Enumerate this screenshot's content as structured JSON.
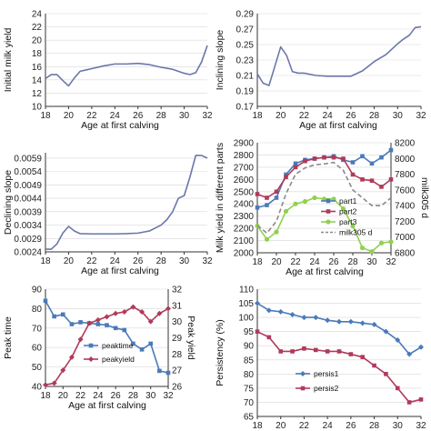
{
  "chart_data": [
    {
      "type": "line",
      "xlabel": "Age at first calving",
      "ylabel": "Initial milk yield",
      "xlim": [
        18,
        32
      ],
      "ylim": [
        10,
        24
      ],
      "xticks": [
        "18",
        "20",
        "22",
        "24",
        "26",
        "28",
        "30",
        "32"
      ],
      "yticks": [
        "10",
        "12",
        "14",
        "16",
        "18",
        "20",
        "22",
        "24"
      ],
      "y2label": "",
      "y2ticks": [],
      "legend": [],
      "series": [
        {
          "color": "#6a77aa",
          "marker": "none",
          "dash": "",
          "x": [
            18,
            18.5,
            19,
            19.5,
            20,
            20.5,
            21,
            21.5,
            22,
            23,
            24,
            25,
            26,
            27,
            28,
            29,
            30,
            30.5,
            31,
            31.5,
            32
          ],
          "y": [
            14.2,
            14.8,
            14.8,
            13.9,
            13.1,
            14.3,
            15.3,
            15.5,
            15.7,
            16.1,
            16.4,
            16.4,
            16.5,
            16.3,
            15.9,
            15.6,
            15.0,
            14.8,
            15.1,
            16.7,
            19.2
          ]
        }
      ]
    },
    {
      "type": "line",
      "xlabel": "Age at first calving",
      "ylabel": "Inclining slope",
      "xlim": [
        18,
        32
      ],
      "ylim": [
        0.17,
        0.29
      ],
      "xticks": [
        "18",
        "20",
        "22",
        "24",
        "26",
        "28",
        "30",
        "32"
      ],
      "yticks": [
        "0.17",
        "0.19",
        "0.21",
        "0.23",
        "0.25",
        "0.27",
        "0.29"
      ],
      "y2label": "",
      "y2ticks": [],
      "legend": [],
      "series": [
        {
          "color": "#6a77aa",
          "marker": "none",
          "dash": "",
          "x": [
            18,
            18.5,
            19,
            19.5,
            20,
            20.5,
            21,
            21.5,
            22,
            23,
            24,
            25,
            26,
            27,
            28,
            29,
            30,
            30.5,
            31,
            31.5,
            32
          ],
          "y": [
            0.212,
            0.2,
            0.197,
            0.222,
            0.247,
            0.236,
            0.215,
            0.213,
            0.213,
            0.21,
            0.209,
            0.209,
            0.209,
            0.216,
            0.228,
            0.237,
            0.251,
            0.257,
            0.262,
            0.272,
            0.273
          ]
        }
      ]
    },
    {
      "type": "line",
      "xlabel": "Age at first calving",
      "ylabel": "Declining slope",
      "xlim": [
        18,
        32
      ],
      "ylim": [
        0.0024,
        0.0061
      ],
      "xticks": [
        "18",
        "20",
        "22",
        "24",
        "26",
        "28",
        "30",
        "32"
      ],
      "yticks": [
        "0.0024",
        "0.0029",
        "0.0034",
        "0.0039",
        "0.0044",
        "0.0049",
        "0.0054",
        "0.0059"
      ],
      "y2label": "",
      "y2ticks": [],
      "legend": [],
      "series": [
        {
          "color": "#6a77aa",
          "marker": "none",
          "dash": "",
          "x": [
            18,
            18.5,
            19,
            19.5,
            20,
            20.5,
            21,
            22,
            23,
            24,
            25,
            26,
            27,
            28,
            28.5,
            29,
            29.5,
            30,
            30.5,
            31,
            31.5,
            32
          ],
          "y": [
            0.0025,
            0.0025,
            0.0027,
            0.0031,
            0.00335,
            0.00318,
            0.00308,
            0.00307,
            0.00307,
            0.00307,
            0.00308,
            0.0031,
            0.00318,
            0.0034,
            0.0036,
            0.0039,
            0.0044,
            0.0045,
            0.0052,
            0.006,
            0.006,
            0.0059
          ]
        }
      ]
    },
    {
      "type": "line",
      "xlabel": "Age at first calving",
      "ylabel": "Milk yield in different parts",
      "xlim": [
        18,
        32
      ],
      "ylim": [
        2000,
        2900
      ],
      "xticks": [
        "18",
        "20",
        "22",
        "24",
        "26",
        "28",
        "30",
        "32"
      ],
      "yticks": [
        "2000",
        "2100",
        "2200",
        "2300",
        "2400",
        "2500",
        "2600",
        "2700",
        "2800",
        "2900"
      ],
      "y2label": "milk305 d",
      "y2lim": [
        6800,
        8200
      ],
      "y2ticks": [
        "6800",
        "7000",
        "7200",
        "7400",
        "7600",
        "7800",
        "8000",
        "8200"
      ],
      "legend": [
        "part1",
        "part2",
        "part3",
        "milk305 d"
      ],
      "series": [
        {
          "name": "part1",
          "color": "#4a7ab8",
          "marker": "square",
          "dash": "",
          "x": [
            18,
            19,
            20,
            21,
            22,
            23,
            24,
            25,
            26,
            27,
            28,
            29,
            30,
            31,
            32
          ],
          "y": [
            2370,
            2390,
            2450,
            2640,
            2730,
            2760,
            2770,
            2780,
            2790,
            2760,
            2740,
            2790,
            2730,
            2780,
            2840
          ]
        },
        {
          "name": "part2",
          "color": "#b03a5a",
          "marker": "square",
          "dash": "",
          "x": [
            18,
            19,
            20,
            21,
            22,
            23,
            24,
            25,
            26,
            27,
            28,
            29,
            30,
            31,
            32
          ],
          "y": [
            2480,
            2450,
            2500,
            2620,
            2700,
            2750,
            2770,
            2780,
            2780,
            2770,
            2640,
            2600,
            2590,
            2540,
            2600
          ]
        },
        {
          "name": "part3",
          "color": "#8fd14f",
          "marker": "circle",
          "dash": "",
          "x": [
            18,
            19,
            20,
            21,
            22,
            23,
            24,
            25,
            26,
            27,
            28,
            29,
            30,
            31,
            32
          ],
          "y": [
            2220,
            2110,
            2170,
            2340,
            2400,
            2420,
            2450,
            2440,
            2440,
            2360,
            2220,
            2040,
            2010,
            2080,
            2090
          ]
        },
        {
          "name": "milk305 d",
          "color": "#8a8a8a",
          "marker": "none",
          "dash": "5,3",
          "axis": "y2",
          "x": [
            18,
            19,
            20,
            21,
            22,
            23,
            24,
            25,
            26,
            27,
            28,
            29,
            30,
            31,
            32
          ],
          "y": [
            7150,
            7050,
            7200,
            7550,
            7800,
            7880,
            7920,
            7930,
            7950,
            7850,
            7600,
            7500,
            7400,
            7400,
            7500
          ]
        }
      ]
    },
    {
      "type": "line",
      "xlabel": "Age at first calving",
      "ylabel": "Peak time",
      "xlim": [
        18,
        32
      ],
      "ylim": [
        40,
        90
      ],
      "xticks": [
        "18",
        "20",
        "22",
        "24",
        "26",
        "28",
        "30",
        "32"
      ],
      "yticks": [
        "40",
        "50",
        "60",
        "70",
        "80",
        "90"
      ],
      "y2label": "Peak yield",
      "y2lim": [
        26,
        32
      ],
      "y2ticks": [
        "26",
        "27",
        "28",
        "29",
        "30",
        "31",
        "32"
      ],
      "legend": [
        "peaktime",
        "peakyield"
      ],
      "series": [
        {
          "name": "peaktime",
          "color": "#4a7ab8",
          "marker": "square",
          "dash": "",
          "x": [
            18,
            19,
            20,
            21,
            22,
            23,
            24,
            25,
            26,
            27,
            28,
            29,
            30,
            31,
            32
          ],
          "y": [
            84,
            76,
            77,
            72,
            73,
            72.5,
            72,
            71.5,
            70,
            69,
            62,
            59,
            62,
            48,
            47
          ]
        },
        {
          "name": "peakyield",
          "color": "#b03a5a",
          "marker": "diamond",
          "dash": "",
          "x": [
            18,
            19,
            20,
            21,
            22,
            23,
            24,
            25,
            26,
            27,
            28,
            29,
            30,
            31,
            32
          ],
          "y": [
            26.1,
            26.2,
            27.0,
            27.8,
            28.9,
            29.9,
            30.1,
            30.3,
            30.5,
            30.6,
            30.9,
            30.6,
            30.0,
            30.5,
            30.8
          ],
          "axis": "y2"
        }
      ]
    },
    {
      "type": "line",
      "xlabel": "Age at first calving",
      "ylabel": "Persistency (%)",
      "xlim": [
        18,
        32
      ],
      "ylim": [
        65,
        110
      ],
      "xticks": [
        "18",
        "20",
        "22",
        "24",
        "26",
        "28",
        "30",
        "32"
      ],
      "yticks": [
        "65",
        "70",
        "75",
        "80",
        "85",
        "90",
        "95",
        "100",
        "105",
        "110"
      ],
      "y2label": "",
      "y2ticks": [],
      "legend": [
        "persis1",
        "persis2"
      ],
      "series": [
        {
          "name": "persis1",
          "color": "#4a7ab8",
          "marker": "diamond",
          "dash": "",
          "x": [
            18,
            19,
            20,
            21,
            22,
            23,
            24,
            25,
            26,
            27,
            28,
            29,
            30,
            31,
            32
          ],
          "y": [
            105,
            102.5,
            102,
            101,
            100,
            100,
            99,
            98.5,
            98.5,
            98,
            97.5,
            95,
            92,
            87,
            89.5
          ]
        },
        {
          "name": "persis2",
          "color": "#b03a5a",
          "marker": "square",
          "dash": "",
          "x": [
            18,
            19,
            20,
            21,
            22,
            23,
            24,
            25,
            26,
            27,
            28,
            29,
            30,
            31,
            32
          ],
          "y": [
            95,
            93,
            88,
            88,
            89,
            88.5,
            88,
            88,
            87,
            86,
            83,
            80,
            75,
            70,
            71
          ]
        }
      ]
    }
  ]
}
